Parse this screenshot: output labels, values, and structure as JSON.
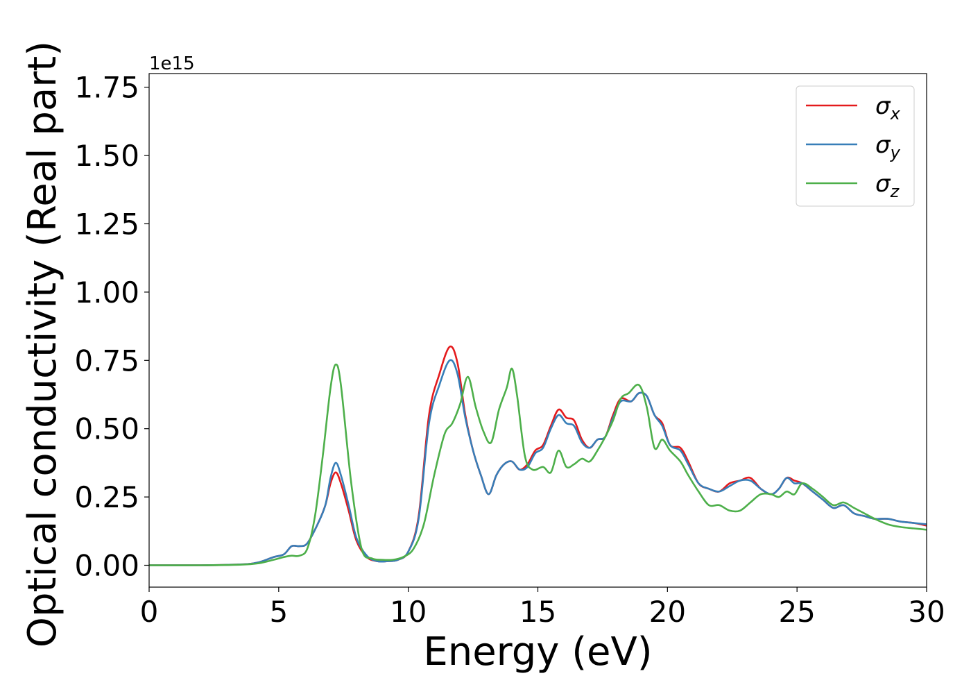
{
  "chart_data": {
    "type": "line",
    "xlabel": "Energy (eV)",
    "ylabel": "Optical conductivity (Real part)",
    "offset_label": "1e15",
    "xlim": [
      0,
      30
    ],
    "ylim": [
      -0.08,
      1.8
    ],
    "xticks": [
      0,
      5,
      10,
      15,
      20,
      25,
      30
    ],
    "xtick_labels": [
      "0",
      "5",
      "10",
      "15",
      "20",
      "25",
      "30"
    ],
    "yticks": [
      0.0,
      0.25,
      0.5,
      0.75,
      1.0,
      1.25,
      1.5,
      1.75
    ],
    "ytick_labels": [
      "0.00",
      "0.25",
      "0.50",
      "0.75",
      "1.00",
      "1.25",
      "1.50",
      "1.75"
    ],
    "grid": false,
    "legend_position": "top-right",
    "series": [
      {
        "name": "σx",
        "symbol": "σ",
        "subscript": "x",
        "color": "#e41a1c",
        "x": [
          0,
          2,
          3.5,
          4.2,
          4.8,
          5.2,
          5.5,
          5.8,
          6.1,
          6.5,
          6.8,
          7.0,
          7.2,
          7.4,
          7.7,
          8.0,
          8.4,
          8.8,
          9.2,
          9.6,
          10.0,
          10.4,
          10.8,
          11.2,
          11.6,
          11.9,
          12.2,
          12.5,
          12.8,
          13.1,
          13.4,
          13.7,
          14.0,
          14.3,
          14.6,
          14.9,
          15.2,
          15.5,
          15.8,
          16.1,
          16.4,
          16.7,
          17.0,
          17.3,
          17.6,
          17.9,
          18.2,
          18.6,
          18.9,
          19.2,
          19.5,
          19.8,
          20.1,
          20.5,
          20.8,
          21.2,
          21.6,
          22.0,
          22.4,
          22.8,
          23.2,
          23.6,
          24.0,
          24.3,
          24.6,
          24.9,
          25.2,
          25.6,
          26.0,
          26.4,
          26.8,
          27.2,
          27.6,
          28.0,
          28.5,
          29.0,
          29.5,
          30.0
        ],
        "y": [
          0.0,
          0.0,
          0.003,
          0.01,
          0.03,
          0.04,
          0.07,
          0.07,
          0.08,
          0.15,
          0.22,
          0.3,
          0.34,
          0.3,
          0.2,
          0.09,
          0.03,
          0.015,
          0.015,
          0.02,
          0.05,
          0.18,
          0.55,
          0.7,
          0.8,
          0.74,
          0.55,
          0.42,
          0.33,
          0.26,
          0.33,
          0.37,
          0.38,
          0.35,
          0.37,
          0.42,
          0.44,
          0.51,
          0.57,
          0.54,
          0.53,
          0.46,
          0.43,
          0.46,
          0.47,
          0.55,
          0.61,
          0.6,
          0.63,
          0.62,
          0.55,
          0.52,
          0.44,
          0.43,
          0.38,
          0.3,
          0.28,
          0.27,
          0.3,
          0.31,
          0.32,
          0.28,
          0.26,
          0.28,
          0.32,
          0.31,
          0.3,
          0.27,
          0.24,
          0.21,
          0.22,
          0.19,
          0.18,
          0.17,
          0.17,
          0.16,
          0.155,
          0.145
        ]
      },
      {
        "name": "σy",
        "symbol": "σ",
        "subscript": "y",
        "color": "#377eb8",
        "x": [
          0,
          2,
          3.5,
          4.2,
          4.8,
          5.2,
          5.5,
          5.8,
          6.1,
          6.5,
          6.8,
          7.0,
          7.2,
          7.4,
          7.7,
          8.0,
          8.4,
          8.8,
          9.2,
          9.6,
          10.0,
          10.4,
          10.8,
          11.2,
          11.6,
          11.9,
          12.2,
          12.5,
          12.8,
          13.1,
          13.4,
          13.7,
          14.0,
          14.3,
          14.6,
          14.9,
          15.2,
          15.5,
          15.8,
          16.1,
          16.4,
          16.7,
          17.0,
          17.3,
          17.6,
          17.9,
          18.2,
          18.6,
          18.9,
          19.2,
          19.5,
          19.8,
          20.1,
          20.5,
          20.8,
          21.2,
          21.6,
          22.0,
          22.4,
          22.8,
          23.2,
          23.6,
          24.0,
          24.3,
          24.6,
          24.9,
          25.2,
          25.6,
          26.0,
          26.4,
          26.8,
          27.2,
          27.6,
          28.0,
          28.5,
          29.0,
          29.5,
          30.0
        ],
        "y": [
          0.0,
          0.0,
          0.003,
          0.01,
          0.03,
          0.04,
          0.07,
          0.07,
          0.08,
          0.15,
          0.22,
          0.32,
          0.375,
          0.33,
          0.22,
          0.1,
          0.035,
          0.015,
          0.015,
          0.02,
          0.05,
          0.17,
          0.52,
          0.66,
          0.75,
          0.7,
          0.54,
          0.42,
          0.33,
          0.26,
          0.33,
          0.37,
          0.38,
          0.35,
          0.36,
          0.41,
          0.43,
          0.5,
          0.55,
          0.52,
          0.51,
          0.45,
          0.43,
          0.46,
          0.47,
          0.54,
          0.6,
          0.6,
          0.63,
          0.62,
          0.55,
          0.51,
          0.44,
          0.42,
          0.37,
          0.3,
          0.28,
          0.27,
          0.29,
          0.31,
          0.31,
          0.28,
          0.26,
          0.28,
          0.32,
          0.3,
          0.3,
          0.27,
          0.24,
          0.21,
          0.22,
          0.19,
          0.18,
          0.17,
          0.17,
          0.16,
          0.155,
          0.15
        ]
      },
      {
        "name": "σz",
        "symbol": "σ",
        "subscript": "z",
        "color": "#4daf4a",
        "x": [
          0,
          2,
          3.5,
          4.2,
          4.8,
          5.2,
          5.5,
          5.8,
          6.1,
          6.4,
          6.7,
          7.0,
          7.2,
          7.4,
          7.8,
          8.2,
          8.6,
          9.0,
          9.4,
          9.8,
          10.2,
          10.6,
          11.0,
          11.4,
          11.7,
          12.0,
          12.3,
          12.6,
          12.9,
          13.2,
          13.5,
          13.8,
          14.0,
          14.2,
          14.5,
          14.8,
          15.2,
          15.5,
          15.8,
          16.1,
          16.4,
          16.7,
          17.0,
          17.3,
          17.6,
          17.9,
          18.2,
          18.5,
          18.9,
          19.2,
          19.5,
          19.8,
          20.1,
          20.5,
          20.8,
          21.2,
          21.6,
          22.0,
          22.4,
          22.8,
          23.2,
          23.6,
          24.0,
          24.3,
          24.6,
          24.9,
          25.2,
          25.6,
          26.0,
          26.4,
          26.8,
          27.2,
          27.6,
          28.0,
          28.5,
          29.0,
          29.5,
          30.0
        ],
        "y": [
          0.0,
          0.0,
          0.002,
          0.007,
          0.02,
          0.03,
          0.035,
          0.035,
          0.06,
          0.18,
          0.4,
          0.65,
          0.735,
          0.66,
          0.3,
          0.06,
          0.025,
          0.02,
          0.02,
          0.03,
          0.06,
          0.15,
          0.33,
          0.48,
          0.52,
          0.59,
          0.69,
          0.58,
          0.49,
          0.45,
          0.57,
          0.65,
          0.72,
          0.62,
          0.4,
          0.35,
          0.36,
          0.34,
          0.42,
          0.36,
          0.37,
          0.39,
          0.38,
          0.42,
          0.47,
          0.53,
          0.61,
          0.63,
          0.66,
          0.58,
          0.43,
          0.46,
          0.42,
          0.38,
          0.33,
          0.27,
          0.22,
          0.22,
          0.2,
          0.2,
          0.23,
          0.26,
          0.26,
          0.25,
          0.27,
          0.26,
          0.3,
          0.28,
          0.25,
          0.22,
          0.23,
          0.21,
          0.19,
          0.17,
          0.15,
          0.14,
          0.135,
          0.13
        ]
      }
    ]
  }
}
